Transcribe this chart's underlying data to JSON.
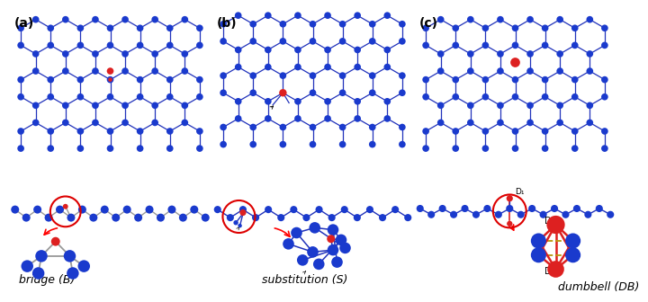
{
  "bg_color": "#ffffff",
  "blue_atom": "#1a3acd",
  "red_atom": "#dd2020",
  "bond_blue": "#2233bb",
  "bond_gray": "#999999",
  "bond_gold_dash": "#b8960a",
  "red_circle": "#dd0000",
  "label_a": "(a)",
  "label_b": "(b)",
  "label_c": "(c)",
  "label_bridge": "bridge (B)",
  "label_sub": "substitution (S)",
  "label_db": "dumbbell (DB)",
  "label_d1": "D₁",
  "label_d2": "D₂",
  "font_size_label": 9,
  "font_size_abc": 10
}
